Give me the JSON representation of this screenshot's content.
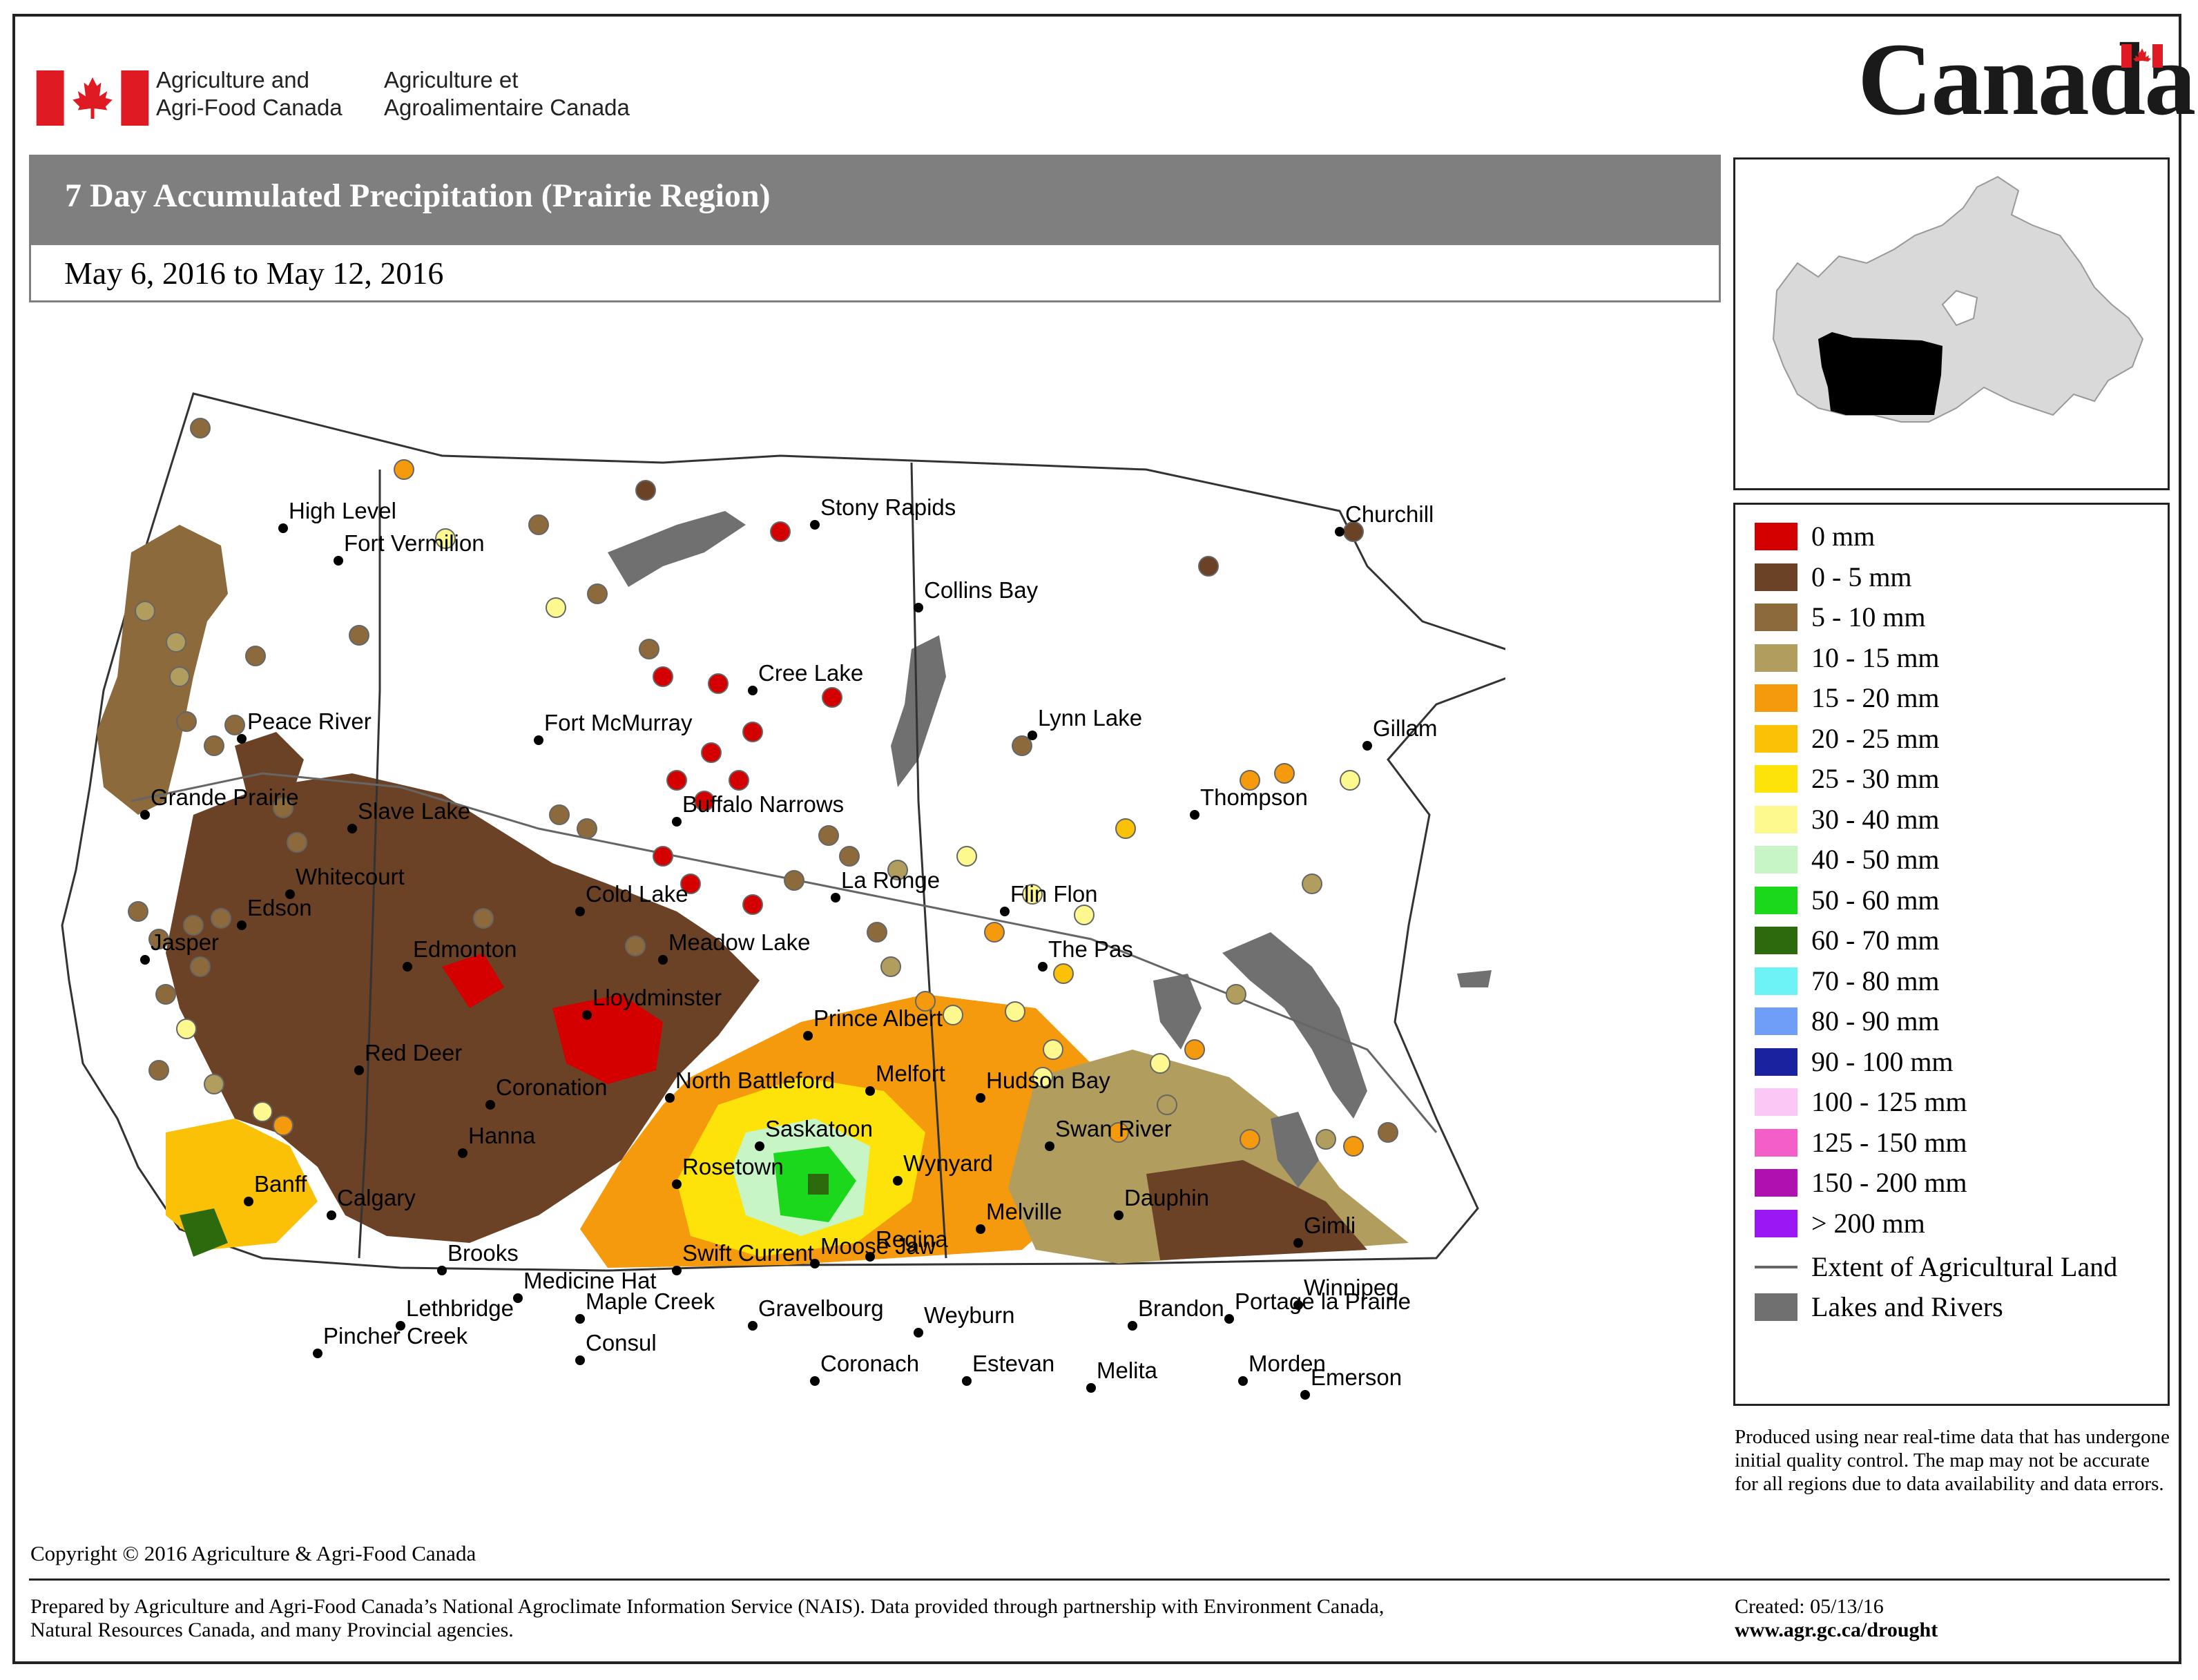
{
  "header": {
    "agency_en_line1": "Agriculture and",
    "agency_en_line2": "Agri-Food Canada",
    "agency_fr_line1": "Agriculture et",
    "agency_fr_line2": "Agroalimentaire Canada",
    "wordmark": "Canada"
  },
  "title": "7 Day Accumulated Precipitation (Prairie Region)",
  "date_range": "May 6, 2016 to May 12, 2016",
  "legend": {
    "items": [
      {
        "label": "0 mm",
        "color": "#d40000"
      },
      {
        "label": "0 - 5 mm",
        "color": "#6b4226"
      },
      {
        "label": "5 - 10 mm",
        "color": "#8c6a3c"
      },
      {
        "label": "10 - 15 mm",
        "color": "#b19d5e"
      },
      {
        "label": "15 - 20 mm",
        "color": "#f49a0c"
      },
      {
        "label": "20 - 25 mm",
        "color": "#fbc106"
      },
      {
        "label": "25 - 30 mm",
        "color": "#fde30a"
      },
      {
        "label": "30 - 40 mm",
        "color": "#fdf98f"
      },
      {
        "label": "40 - 50 mm",
        "color": "#c8f5c6"
      },
      {
        "label": "50 - 60 mm",
        "color": "#1cd81c"
      },
      {
        "label": "60 - 70 mm",
        "color": "#2d6a0e"
      },
      {
        "label": "70 - 80 mm",
        "color": "#6df2f6"
      },
      {
        "label": "80 - 90 mm",
        "color": "#6e9ef8"
      },
      {
        "label": "90 - 100 mm",
        "color": "#1a22a0"
      },
      {
        "label": "100 - 125 mm",
        "color": "#fbc8f6"
      },
      {
        "label": "125 - 150 mm",
        "color": "#f45ec8"
      },
      {
        "label": "150 - 200 mm",
        "color": "#b010b0"
      },
      {
        "label": "> 200 mm",
        "color": "#9b18f5"
      }
    ],
    "line_item": "Extent of Agricultural Land",
    "lakes_item": "Lakes and Rivers",
    "lakes_color": "#707070"
  },
  "note": "Produced using near real-time data that has undergone initial quality control.  The map may not be accurate for all regions due to data availability and data errors.",
  "copyright": "Copyright © 2016 Agriculture & Agri-Food Canada",
  "prepared_by": "Prepared by Agriculture and Agri-Food Canada’s National Agroclimate Information Service (NAIS).   Data provided through partnership with Environment Canada, Natural Resources Canada, and many Provincial agencies.",
  "created": "Created: 05/13/16",
  "website": "www.agr.gc.ca/drought",
  "cities": [
    "High Level",
    "Fort Vermilion",
    "Peace River",
    "Grande Prairie",
    "Slave Lake",
    "Fort McMurray",
    "Whitecourt",
    "Edson",
    "Jasper",
    "Edmonton",
    "Cold Lake",
    "Red Deer",
    "Coronation",
    "Banff",
    "Calgary",
    "Hanna",
    "Brooks",
    "Medicine Hat",
    "Lethbridge",
    "Pincher Creek",
    "Stony Rapids",
    "Collins Bay",
    "Cree Lake",
    "Buffalo Narrows",
    "La Ronge",
    "Meadow Lake",
    "Lloydminster",
    "North Battleford",
    "Prince Albert",
    "Melfort",
    "Saskatoon",
    "Rosetown",
    "Wynyard",
    "Swift Current",
    "Moose Jaw",
    "Regina",
    "Maple Creek",
    "Gravelbourg",
    "Consul",
    "Coronach",
    "Weyburn",
    "Estevan",
    "Melville",
    "Hudson Bay",
    "Churchill",
    "Lynn Lake",
    "Gillam",
    "Thompson",
    "Flin Flon",
    "The Pas",
    "Swan River",
    "Dauphin",
    "Gimli",
    "Portage la Prairie",
    "Winnipeg",
    "Brandon",
    "Morden",
    "Melita",
    "Emerson"
  ]
}
